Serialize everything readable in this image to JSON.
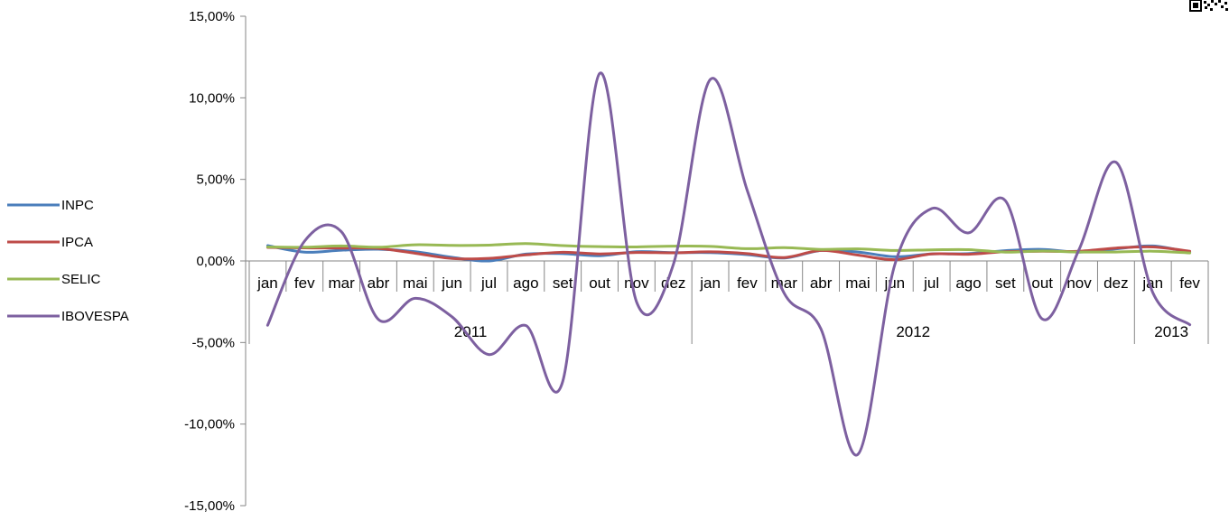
{
  "chart_data": {
    "type": "line",
    "title": "",
    "xlabel": "",
    "ylabel": "",
    "ylim": [
      -0.15,
      0.15
    ],
    "yticks": [
      0.15,
      0.1,
      0.05,
      0.0,
      -0.05,
      -0.1,
      -0.15
    ],
    "ytick_labels": [
      "15,00%",
      "10,00%",
      "5,00%",
      "0,00%",
      "-5,00%",
      "-10,00%",
      "-15,00%"
    ],
    "categories": [
      "jan",
      "fev",
      "mar",
      "abr",
      "mai",
      "jun",
      "jul",
      "ago",
      "set",
      "out",
      "nov",
      "dez",
      "jan",
      "fev",
      "mar",
      "abr",
      "mai",
      "jun",
      "jul",
      "ago",
      "set",
      "out",
      "nov",
      "dez",
      "jan",
      "fev"
    ],
    "year_groups": [
      {
        "label": "2011",
        "start": 0,
        "end": 11
      },
      {
        "label": "2012",
        "start": 12,
        "end": 23
      },
      {
        "label": "2013",
        "start": 24,
        "end": 25
      }
    ],
    "legend_position": "left",
    "grid": false,
    "series": [
      {
        "name": "INPC",
        "color": "#4a7ebb",
        "values": [
          0.0094,
          0.0054,
          0.0066,
          0.0072,
          0.0057,
          0.0022,
          0.0,
          0.0042,
          0.0045,
          0.0032,
          0.0057,
          0.0051,
          0.0051,
          0.0039,
          0.0018,
          0.0064,
          0.0055,
          0.0026,
          0.0043,
          0.0045,
          0.0063,
          0.0071,
          0.0054,
          0.0074,
          0.0092,
          0.0052
        ]
      },
      {
        "name": "IPCA",
        "color": "#be4b48",
        "values": [
          0.0083,
          0.008,
          0.0079,
          0.0077,
          0.0047,
          0.0015,
          0.0016,
          0.0037,
          0.0053,
          0.0043,
          0.0052,
          0.005,
          0.0056,
          0.0045,
          0.0021,
          0.0064,
          0.0036,
          0.0008,
          0.0043,
          0.0041,
          0.0057,
          0.0059,
          0.006,
          0.0079,
          0.0086,
          0.006
        ]
      },
      {
        "name": "SELIC",
        "color": "#98b954",
        "values": [
          0.0086,
          0.0084,
          0.0092,
          0.0084,
          0.0099,
          0.0095,
          0.0097,
          0.0107,
          0.0094,
          0.0088,
          0.0086,
          0.0091,
          0.0089,
          0.0075,
          0.0082,
          0.0071,
          0.0074,
          0.0064,
          0.0068,
          0.0069,
          0.0054,
          0.0061,
          0.0055,
          0.0055,
          0.006,
          0.0049
        ]
      },
      {
        "name": "IBOVESPA",
        "color": "#7d60a0",
        "values": [
          -0.0394,
          0.0122,
          0.0179,
          -0.0358,
          -0.0229,
          -0.0343,
          -0.0574,
          -0.0396,
          -0.0738,
          0.1149,
          -0.0251,
          -0.0021,
          0.1113,
          0.0434,
          -0.0197,
          -0.0417,
          -0.1186,
          -0.0025,
          0.0321,
          0.0172,
          0.037,
          -0.0356,
          0.0071,
          0.0605,
          -0.0195,
          -0.0391
        ]
      }
    ]
  }
}
